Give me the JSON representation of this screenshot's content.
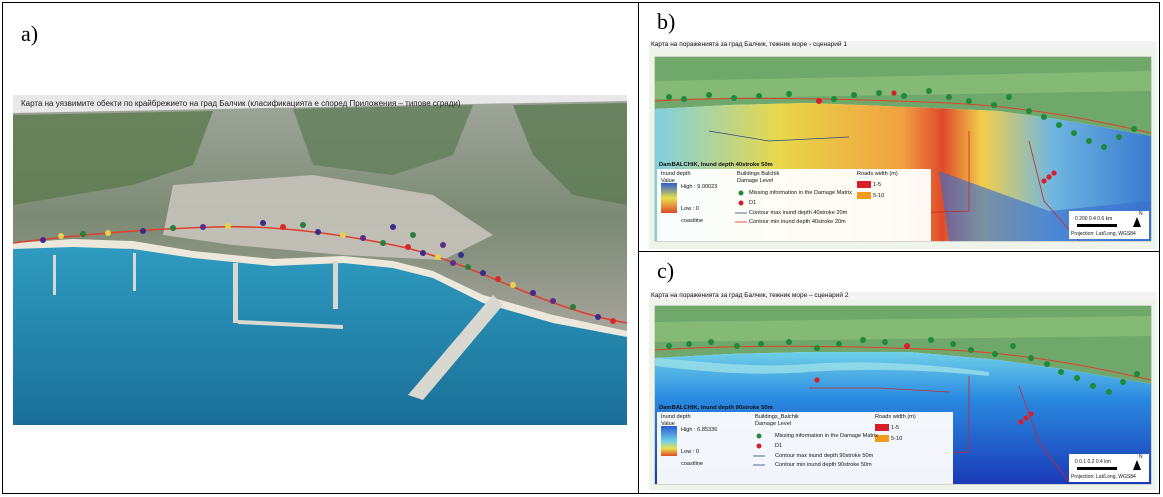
{
  "panels": {
    "a": {
      "letter": "a)",
      "title": "Карта на уязвимите обекти по крайбрежието на град Балчик (класификацията е според Приложения – типове сгради)"
    },
    "b": {
      "letter": "b)",
      "title": "Карта на пораженията за град Балчик, тежник море - сценарий 1",
      "overlay_label": "DamBALCHIK, Inund depth 40stroke 50m",
      "legend": {
        "depth_header": "Inund depth",
        "value_label": "Value",
        "high": "High : 9.00023",
        "low": "Low : 0",
        "shoreline": "coastline",
        "buildings_header": "Buildings Balchik",
        "damage_level": "Damage Level",
        "missing": "Missing information in the Damage Matrix",
        "d1": "D1",
        "contour1": "Contour max inund depth 40stroke 20m",
        "contour2": "Contour min inund depth 40stroke 20m",
        "roads_header": "Roads width (m)",
        "road1": "1-5",
        "road2": "5-10"
      },
      "scale": {
        "text": "0   200  0.4        0.6 km",
        "projection": "Projection: Lat/Long, WGS84"
      },
      "north": "N"
    },
    "c": {
      "letter": "c)",
      "title": "Карта на пораженията за град Балчик, тежник море – сценарий 2",
      "overlay_label": "DamBALCHIK, Inund depth 90stroke 50m",
      "legend": {
        "depth_header": "Inund depth",
        "value_label": "Value",
        "high": "High : 6.85336",
        "low": "Low : 0",
        "shoreline": "coastline",
        "buildings_header": "Buildings_Balchik",
        "damage_level": "Damage Level",
        "missing": "Missing information in the Damage Matrix",
        "d1": "D1",
        "contour1": "Contour max inund depth 90stroke 50m",
        "contour2": "Contour min inund depth 90stroke 50m",
        "roads_header": "Roads width (m)",
        "road1": "1-5",
        "road2": "5-10"
      },
      "scale": {
        "text": "0   0.1   0.2       0.4 km",
        "projection": "Projection: Lat/Long, WGS84"
      },
      "north": "N"
    }
  },
  "colors": {
    "sea": "#2a8fb8",
    "land": "#6f8f5c",
    "urban": "#c8c6c0",
    "road": "#e0402e",
    "building_green": "#1f8a3a",
    "building_red": "#d81e2a",
    "road_orange": "#f39a1e"
  }
}
